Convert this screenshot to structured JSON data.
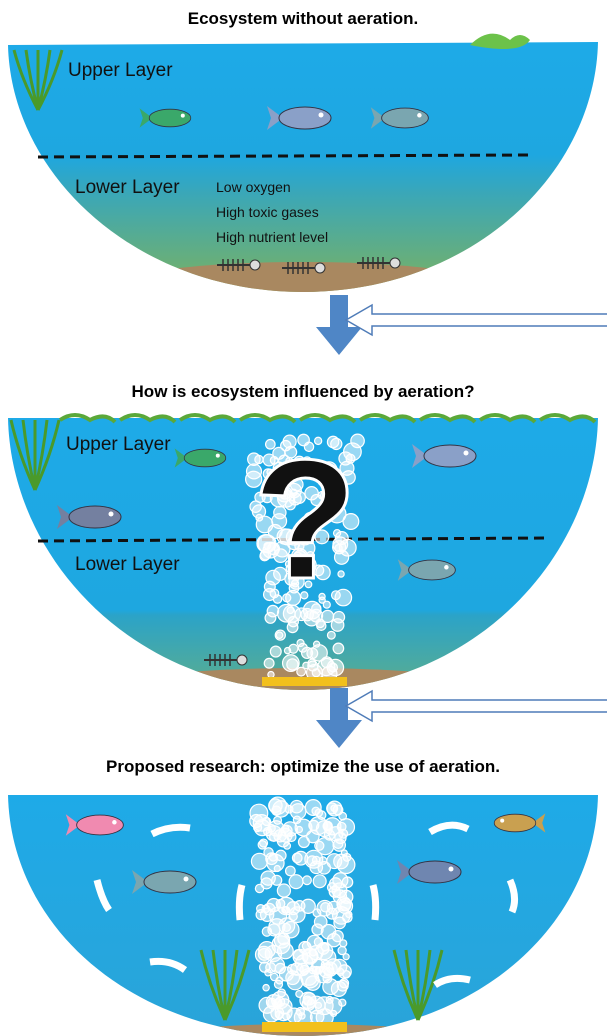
{
  "panels": [
    {
      "title": "Ecosystem without aeration.",
      "upper_label": "Upper Layer",
      "lower_label": "Lower Layer",
      "conditions": [
        "Low oxygen",
        "High toxic gases",
        "High nutrient level"
      ]
    },
    {
      "title": "How is ecosystem influenced by aeration?",
      "upper_label": "Upper Layer",
      "lower_label": "Lower Layer",
      "question": "?"
    },
    {
      "title": "Proposed research: optimize the use of aeration."
    }
  ]
}
